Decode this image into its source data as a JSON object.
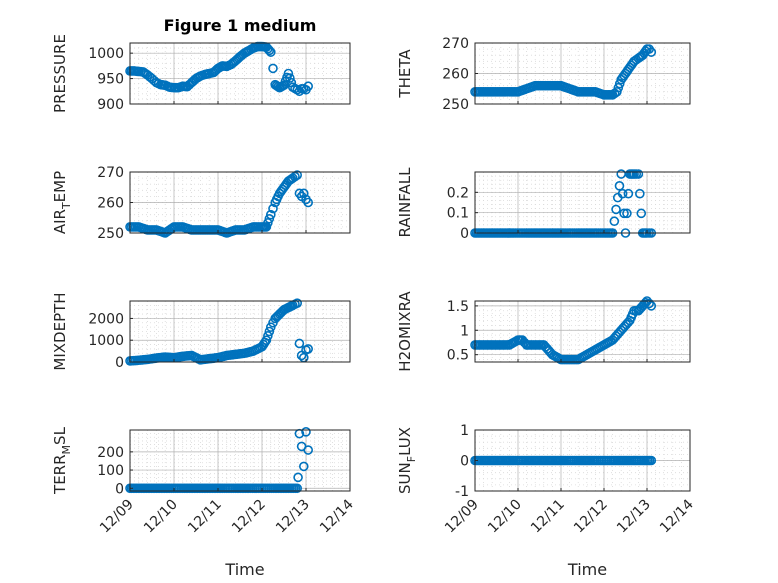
{
  "figure": {
    "title": "Figure 1 medium",
    "xlabel": "Time"
  },
  "colors": {
    "marker": "#0072BD",
    "axis": "#262626",
    "grid": "#b0b0b0",
    "background": "#ffffff"
  },
  "chart_data": [
    {
      "type": "scatter",
      "ylabel": "PRESSURE",
      "xlim": [
        0,
        5
      ],
      "xticks": [
        "12/09",
        "12/10",
        "12/11",
        "12/12",
        "12/13",
        "12/14"
      ],
      "ylim": [
        900,
        1020
      ],
      "yticks": [
        900,
        950,
        1000
      ],
      "grid": true,
      "x": [
        0.0,
        0.1,
        0.2,
        0.3,
        0.4,
        0.5,
        0.6,
        0.7,
        0.8,
        0.9,
        1.0,
        1.1,
        1.2,
        1.3,
        1.4,
        1.5,
        1.6,
        1.7,
        1.8,
        1.9,
        2.0,
        2.1,
        2.2,
        2.3,
        2.4,
        2.5,
        2.6,
        2.7,
        2.8,
        2.9,
        3.0,
        3.1,
        3.2,
        3.3,
        3.4,
        3.5,
        3.6,
        3.7,
        3.8,
        3.85,
        3.9,
        3.95,
        4.0,
        4.05
      ],
      "y": [
        965,
        965,
        964,
        963,
        957,
        950,
        942,
        938,
        937,
        933,
        932,
        932,
        935,
        934,
        942,
        950,
        955,
        958,
        960,
        962,
        970,
        975,
        974,
        978,
        985,
        993,
        1000,
        1005,
        1010,
        1013,
        1013,
        1012,
        1002,
        938,
        932,
        937,
        960,
        933,
        928,
        925,
        930,
        930,
        928,
        935
      ]
    },
    {
      "type": "scatter",
      "ylabel": "THETA",
      "xlim": [
        0,
        5
      ],
      "xticks": [
        "12/09",
        "12/10",
        "12/11",
        "12/12",
        "12/13",
        "12/14"
      ],
      "ylim": [
        250,
        270
      ],
      "yticks": [
        250,
        260,
        270
      ],
      "grid": true,
      "x": [
        0.0,
        0.2,
        0.4,
        0.6,
        0.8,
        1.0,
        1.2,
        1.4,
        1.6,
        1.8,
        2.0,
        2.2,
        2.4,
        2.6,
        2.8,
        3.0,
        3.1,
        3.2,
        3.3,
        3.4,
        3.5,
        3.6,
        3.7,
        3.8,
        3.9,
        4.0,
        4.05,
        4.1
      ],
      "y": [
        254,
        254,
        254,
        254,
        254,
        254,
        255,
        256,
        256,
        256,
        256,
        255,
        254,
        254,
        254,
        253,
        253,
        253,
        254,
        258,
        260,
        262,
        264,
        265,
        266,
        268,
        268,
        267
      ]
    },
    {
      "type": "scatter",
      "ylabel": "AIR_TEMP",
      "xlim": [
        0,
        5
      ],
      "xticks": [
        "12/09",
        "12/10",
        "12/11",
        "12/12",
        "12/13",
        "12/14"
      ],
      "ylim": [
        250,
        270
      ],
      "yticks": [
        250,
        260,
        270
      ],
      "grid": true,
      "x": [
        0.0,
        0.2,
        0.4,
        0.6,
        0.8,
        1.0,
        1.2,
        1.4,
        1.6,
        1.8,
        2.0,
        2.2,
        2.4,
        2.6,
        2.8,
        3.0,
        3.1,
        3.2,
        3.3,
        3.4,
        3.5,
        3.6,
        3.7,
        3.8,
        3.85,
        3.9,
        3.95,
        4.0,
        4.05
      ],
      "y": [
        252,
        252,
        251,
        251,
        250,
        252,
        252,
        251,
        251,
        251,
        251,
        250,
        251,
        251,
        252,
        252,
        252,
        256,
        260,
        263,
        265,
        267,
        268,
        269,
        263,
        262,
        263,
        261,
        260
      ]
    },
    {
      "type": "scatter",
      "ylabel": "RAINFALL",
      "xlim": [
        0,
        5
      ],
      "xticks": [
        "12/09",
        "12/10",
        "12/11",
        "12/12",
        "12/13",
        "12/14"
      ],
      "ylim": [
        0,
        0.3
      ],
      "yticks": [
        0,
        0.1,
        0.2
      ],
      "grid": true,
      "x": [
        0.0,
        0.3,
        0.6,
        0.9,
        1.2,
        1.5,
        1.8,
        2.1,
        2.4,
        2.7,
        3.0,
        3.2,
        3.4,
        3.5,
        3.6,
        3.7,
        3.8,
        3.9,
        4.0,
        4.1
      ],
      "y": [
        0,
        0,
        0,
        0,
        0,
        0,
        0,
        0,
        0,
        0,
        0,
        0,
        0.29,
        0,
        0.29,
        0.29,
        0.29,
        0,
        0,
        0
      ]
    },
    {
      "type": "scatter",
      "ylabel": "MIXDEPTH",
      "xlim": [
        0,
        5
      ],
      "xticks": [
        "12/09",
        "12/10",
        "12/11",
        "12/12",
        "12/13",
        "12/14"
      ],
      "ylim": [
        0,
        2800
      ],
      "yticks": [
        0,
        1000,
        2000
      ],
      "grid": true,
      "x": [
        0.0,
        0.2,
        0.4,
        0.6,
        0.8,
        1.0,
        1.2,
        1.4,
        1.6,
        1.8,
        2.0,
        2.2,
        2.4,
        2.6,
        2.8,
        3.0,
        3.1,
        3.2,
        3.3,
        3.4,
        3.5,
        3.6,
        3.7,
        3.8,
        3.85,
        3.9,
        3.95,
        4.0,
        4.05
      ],
      "y": [
        50,
        80,
        120,
        180,
        230,
        200,
        260,
        300,
        100,
        150,
        200,
        300,
        350,
        400,
        500,
        700,
        1000,
        1600,
        2000,
        2200,
        2400,
        2500,
        2600,
        2700,
        850,
        300,
        200,
        550,
        600
      ]
    },
    {
      "type": "scatter",
      "ylabel": "H2OMIXRA",
      "xlim": [
        0,
        5
      ],
      "xticks": [
        "12/09",
        "12/10",
        "12/11",
        "12/12",
        "12/13",
        "12/14"
      ],
      "ylim": [
        0.35,
        1.6
      ],
      "yticks": [
        0.5,
        1,
        1.5
      ],
      "grid": true,
      "x": [
        0.0,
        0.2,
        0.4,
        0.6,
        0.8,
        1.0,
        1.1,
        1.2,
        1.4,
        1.6,
        1.8,
        2.0,
        2.2,
        2.4,
        2.6,
        2.8,
        3.0,
        3.2,
        3.4,
        3.6,
        3.7,
        3.8,
        3.9,
        4.0,
        4.1
      ],
      "y": [
        0.7,
        0.7,
        0.7,
        0.7,
        0.7,
        0.8,
        0.8,
        0.7,
        0.7,
        0.7,
        0.5,
        0.4,
        0.4,
        0.4,
        0.5,
        0.6,
        0.7,
        0.8,
        1.0,
        1.2,
        1.4,
        1.4,
        1.5,
        1.6,
        1.5
      ]
    },
    {
      "type": "scatter",
      "ylabel": "TERR_MSL",
      "xlim": [
        0,
        5
      ],
      "xticks": [
        "12/09",
        "12/10",
        "12/11",
        "12/12",
        "12/13",
        "12/14"
      ],
      "ylim": [
        -15,
        320
      ],
      "yticks": [
        0,
        100,
        200
      ],
      "grid": true,
      "x": [
        0.0,
        0.3,
        0.6,
        0.9,
        1.2,
        1.5,
        1.8,
        2.1,
        2.4,
        2.7,
        3.0,
        3.3,
        3.6,
        3.8,
        3.82,
        3.85,
        3.9,
        3.95,
        4.0,
        4.05
      ],
      "y": [
        0,
        0,
        0,
        0,
        0,
        0,
        0,
        0,
        0,
        0,
        0,
        0,
        0,
        0,
        60,
        300,
        230,
        120,
        310,
        210
      ]
    },
    {
      "type": "scatter",
      "ylabel": "SUN_FLUX",
      "xlim": [
        0,
        5
      ],
      "xticks": [
        "12/09",
        "12/10",
        "12/11",
        "12/12",
        "12/13",
        "12/14"
      ],
      "ylim": [
        -1,
        1
      ],
      "yticks": [
        -1,
        0,
        1
      ],
      "grid": true,
      "x": [
        0.0,
        0.3,
        0.6,
        0.9,
        1.2,
        1.5,
        1.8,
        2.1,
        2.4,
        2.7,
        3.0,
        3.3,
        3.6,
        3.9,
        4.1
      ],
      "y": [
        0,
        0,
        0,
        0,
        0,
        0,
        0,
        0,
        0,
        0,
        0,
        0,
        0,
        0,
        0
      ]
    }
  ]
}
